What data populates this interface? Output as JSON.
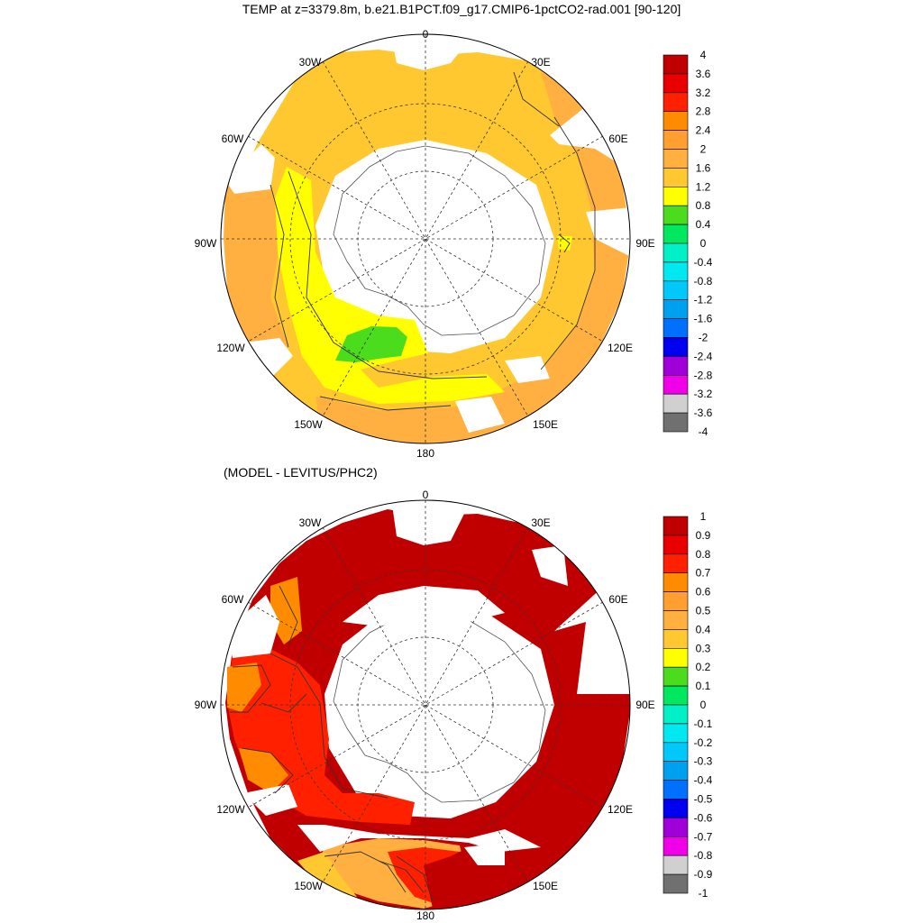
{
  "title_top": "TEMP at z=3379.8m, b.e21.B1PCT.f09_g17.CMIP6-1pctCO2-rad.001 [90-120]",
  "title_bottom": "(MODEL - LEVITUS/PHC2)",
  "longitude_labels": {
    "lon0": "0",
    "lon30e": "30E",
    "lon60e": "60E",
    "lon90e": "90E",
    "lon120e": "120E",
    "lon150e": "150E",
    "lon180": "180",
    "lon150w": "150W",
    "lon120w": "120W",
    "lon90w": "90W",
    "lon60w": "60W",
    "lon30w": "30W"
  },
  "colorbar_top": {
    "labels": [
      "4",
      "3.6",
      "3.2",
      "2.8",
      "2.4",
      "2",
      "1.6",
      "1.2",
      "0.8",
      "0.4",
      "0",
      "-0.4",
      "-0.8",
      "-1.2",
      "-1.6",
      "-2",
      "-2.4",
      "-2.8",
      "-3.2",
      "-3.6",
      "-4"
    ],
    "colors": [
      "#c00000",
      "#e80000",
      "#ff2000",
      "#ff8c00",
      "#ff9f30",
      "#ffb040",
      "#ffc830",
      "#ffff00",
      "#4cdc1e",
      "#00e860",
      "#00f0c8",
      "#00e8f0",
      "#00c8f8",
      "#00a0f0",
      "#0070ff",
      "#0000f0",
      "#a000d8",
      "#f000e8",
      "#d0d0d0",
      "#707070"
    ]
  },
  "colorbar_bottom": {
    "labels": [
      "1",
      "0.9",
      "0.8",
      "0.7",
      "0.6",
      "0.5",
      "0.4",
      "0.3",
      "0.2",
      "0.1",
      "0",
      "-0.1",
      "-0.2",
      "-0.3",
      "-0.4",
      "-0.5",
      "-0.6",
      "-0.7",
      "-0.8",
      "-0.9",
      "-1"
    ],
    "colors": [
      "#c00000",
      "#e80000",
      "#ff2000",
      "#ff8c00",
      "#ff9f30",
      "#ffb040",
      "#ffc830",
      "#ffff00",
      "#4cdc1e",
      "#00e860",
      "#00f0c8",
      "#00e8f0",
      "#00c8f8",
      "#00a0f0",
      "#0070ff",
      "#0000f0",
      "#a000d8",
      "#f000e8",
      "#d0d0d0",
      "#707070"
    ]
  },
  "map_colors": {
    "ocean_top": "#ffc830",
    "ocean_top_west": "#ffb040",
    "ocean_top_east": "#ffb040",
    "yellow_band": "#ffff00",
    "green_patch": "#4cdc1e",
    "ocean_bottom": "#c00000",
    "bottom_red": "#ff2000",
    "bottom_orange": "#ff8c00",
    "bottom_yellow": "#ffc830"
  }
}
